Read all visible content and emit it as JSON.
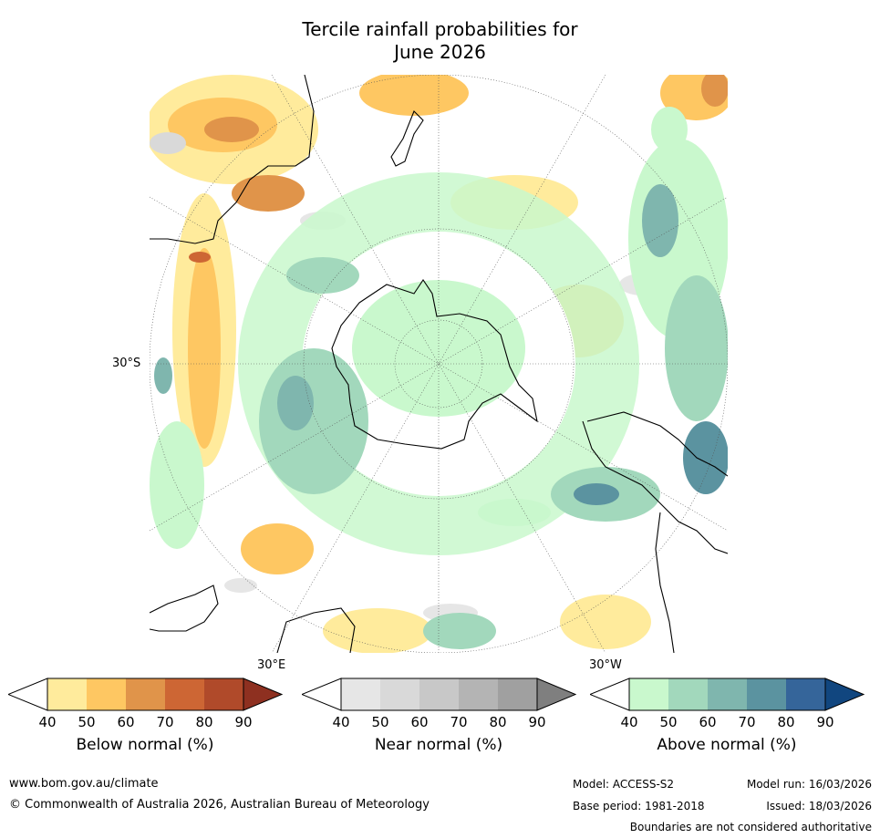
{
  "title": {
    "line1": "Tercile rainfall probabilities for",
    "line2": "June 2026"
  },
  "axis_labels": {
    "lat": "30°S",
    "lon_east": "30°E",
    "lon_west": "30°W"
  },
  "colorbars": [
    {
      "label": "Below normal (%)",
      "ticks": [
        "40",
        "50",
        "60",
        "70",
        "80",
        "90"
      ],
      "colors": [
        "#ffffff",
        "#ffeb9c",
        "#fec762",
        "#e0944a",
        "#cd6634",
        "#b04a2a",
        "#8e3020"
      ]
    },
    {
      "label": "Near normal (%)",
      "ticks": [
        "40",
        "50",
        "60",
        "70",
        "80",
        "90"
      ],
      "colors": [
        "#ffffff",
        "#e6e6e6",
        "#d9d9d9",
        "#c8c8c8",
        "#b4b4b4",
        "#a0a0a0",
        "#7f7f7f"
      ]
    },
    {
      "label": "Above normal (%)",
      "ticks": [
        "40",
        "50",
        "60",
        "70",
        "80",
        "90"
      ],
      "colors": [
        "#ffffff",
        "#c9f8cd",
        "#a2d8bc",
        "#7fb6ae",
        "#5b93a0",
        "#35659a",
        "#11467f"
      ]
    }
  ],
  "footer": {
    "url": "www.bom.gov.au/climate",
    "copyright": "© Commonwealth of Australia 2026, Australian Bureau of Meteorology",
    "model": "Model: ACCESS-S2",
    "base_period": "Base period: 1981-2018",
    "model_run": "Model run: 16/03/2026",
    "issued": "Issued: 18/03/2026",
    "disclaimer": "Boundaries are not considered authoritative"
  }
}
